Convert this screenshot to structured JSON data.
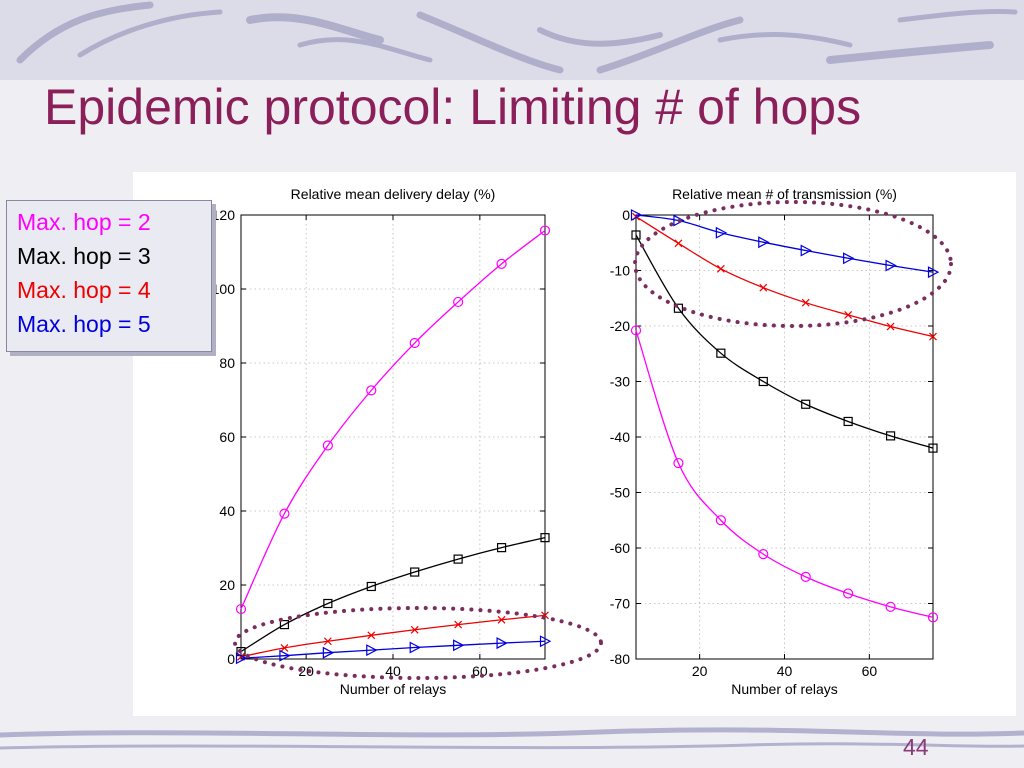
{
  "slide": {
    "title": "Epidemic protocol: Limiting # of hops",
    "page_number": "44"
  },
  "legend": {
    "items": [
      {
        "label": "Max. hop = 2",
        "color": "#ff00ff"
      },
      {
        "label": "Max. hop = 3",
        "color": "#000000"
      },
      {
        "label": "Max. hop = 4",
        "color": "#ee0000"
      },
      {
        "label": "Max. hop = 5",
        "color": "#0000dd"
      }
    ]
  },
  "colors": {
    "title": "#8a1f5a",
    "highlight_ellipse": "#7a2e5e",
    "slide_background": "#eeeef3"
  },
  "chart_data": [
    {
      "type": "line",
      "title": "Relative mean delivery delay (%)",
      "xlabel": "Number of relays",
      "ylabel": "",
      "xlim": [
        5,
        75
      ],
      "ylim": [
        0,
        120
      ],
      "xticks": [
        20,
        40,
        60
      ],
      "yticks": [
        0,
        20,
        40,
        60,
        80,
        100,
        120
      ],
      "grid": true,
      "x": [
        5,
        15,
        25,
        35,
        45,
        55,
        65,
        75
      ],
      "series": [
        {
          "name": "Max. hop = 2",
          "color": "#ff00ff",
          "marker": "circle",
          "values": [
            13.5,
            39.3,
            57.7,
            72.6,
            85.4,
            96.5,
            106.8,
            115.8
          ]
        },
        {
          "name": "Max. hop = 3",
          "color": "#000000",
          "marker": "square",
          "values": [
            2.0,
            9.3,
            15.0,
            19.6,
            23.5,
            27.0,
            30.1,
            32.8
          ]
        },
        {
          "name": "Max. hop = 4",
          "color": "#ee0000",
          "marker": "x",
          "values": [
            0.6,
            3.0,
            4.8,
            6.4,
            7.9,
            9.3,
            10.6,
            11.8
          ]
        },
        {
          "name": "Max. hop = 5",
          "color": "#0000dd",
          "marker": "triangle-right",
          "values": [
            0.2,
            0.9,
            1.7,
            2.4,
            3.1,
            3.7,
            4.3,
            4.8
          ]
        }
      ],
      "highlight": "low-curves-ellipse"
    },
    {
      "type": "line",
      "title": "Relative mean # of transmission (%)",
      "xlabel": "Number of relays",
      "ylabel": "",
      "xlim": [
        5,
        75
      ],
      "ylim": [
        -80,
        0
      ],
      "xticks": [
        20,
        40,
        60
      ],
      "yticks": [
        0,
        -10,
        -20,
        -30,
        -40,
        -50,
        -60,
        -70,
        -80
      ],
      "grid": true,
      "x": [
        5,
        15,
        25,
        35,
        45,
        55,
        65,
        75
      ],
      "series": [
        {
          "name": "Max. hop = 2",
          "color": "#ff00ff",
          "marker": "circle",
          "values": [
            -20.8,
            -44.7,
            -55.0,
            -61.1,
            -65.2,
            -68.2,
            -70.6,
            -72.5
          ]
        },
        {
          "name": "Max. hop = 3",
          "color": "#000000",
          "marker": "square",
          "values": [
            -3.6,
            -16.8,
            -24.9,
            -30.0,
            -34.1,
            -37.2,
            -39.8,
            -42.0
          ]
        },
        {
          "name": "Max. hop = 4",
          "color": "#ee0000",
          "marker": "x",
          "values": [
            -0.3,
            -5.1,
            -9.7,
            -13.1,
            -15.8,
            -18.0,
            -20.1,
            -21.9
          ]
        },
        {
          "name": "Max. hop = 5",
          "color": "#0000dd",
          "marker": "triangle-right",
          "values": [
            0.0,
            -1.0,
            -3.2,
            -4.9,
            -6.4,
            -7.8,
            -9.1,
            -10.3
          ]
        }
      ],
      "highlight": "top-curves-ellipse"
    }
  ]
}
